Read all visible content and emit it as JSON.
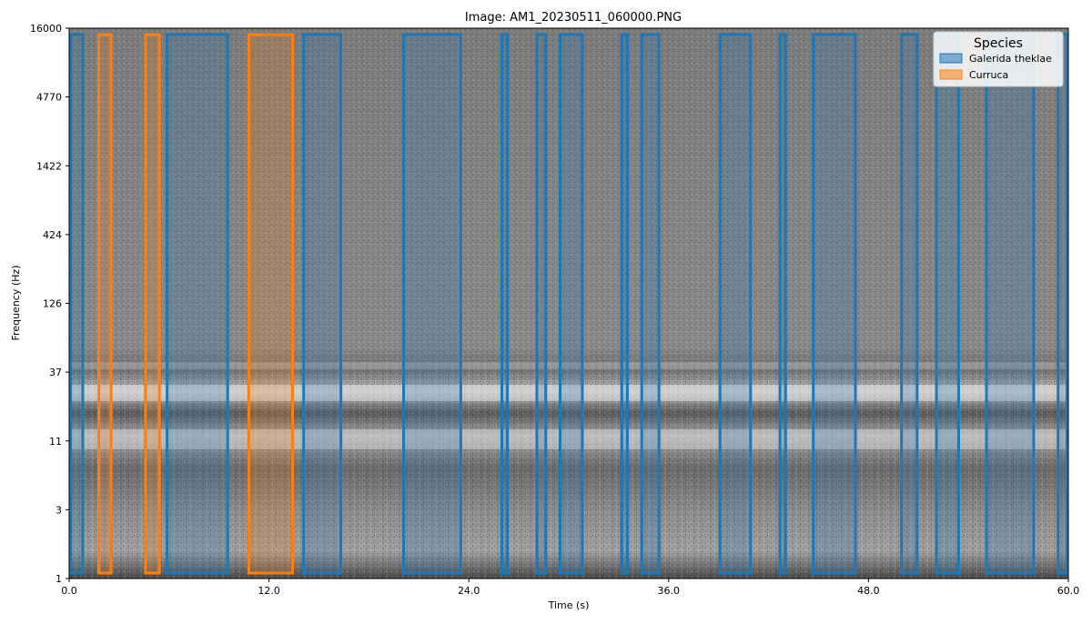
{
  "chart_data": {
    "type": "spectrogram-annotations",
    "title": "Image: AM1_20230511_060000.PNG",
    "xlabel": "Time (s)",
    "ylabel": "Frequency (Hz)",
    "xlim": [
      0,
      60
    ],
    "x_ticks": [
      "0.0",
      "12.0",
      "24.0",
      "36.0",
      "48.0",
      "60.0"
    ],
    "y_ticks": [
      "1",
      "3",
      "11",
      "37",
      "126",
      "424",
      "1422",
      "4770",
      "16000"
    ],
    "legend": {
      "title": "Species",
      "position": "top-right",
      "entries": [
        {
          "name": "Galerida theklae",
          "color": "#1f77b4"
        },
        {
          "name": "Curruca",
          "color": "#ff7f0e"
        }
      ]
    },
    "detections": [
      {
        "species": "Galerida theklae",
        "start": 0.0,
        "end": 0.9
      },
      {
        "species": "Curruca",
        "start": 1.7,
        "end": 2.6
      },
      {
        "species": "Curruca",
        "start": 4.5,
        "end": 5.5
      },
      {
        "species": "Galerida theklae",
        "start": 5.8,
        "end": 9.6
      },
      {
        "species": "Curruca",
        "start": 10.7,
        "end": 13.5
      },
      {
        "species": "Galerida theklae",
        "start": 14.0,
        "end": 16.4
      },
      {
        "species": "Galerida theklae",
        "start": 20.0,
        "end": 23.6
      },
      {
        "species": "Galerida theklae",
        "start": 25.9,
        "end": 26.4
      },
      {
        "species": "Galerida theklae",
        "start": 28.0,
        "end": 28.7
      },
      {
        "species": "Galerida theklae",
        "start": 29.4,
        "end": 30.9
      },
      {
        "species": "Galerida theklae",
        "start": 33.1,
        "end": 33.6
      },
      {
        "species": "Galerida theklae",
        "start": 34.3,
        "end": 35.5
      },
      {
        "species": "Galerida theklae",
        "start": 39.0,
        "end": 41.0
      },
      {
        "species": "Galerida theklae",
        "start": 42.6,
        "end": 43.1
      },
      {
        "species": "Galerida theklae",
        "start": 44.6,
        "end": 47.3
      },
      {
        "species": "Galerida theklae",
        "start": 49.9,
        "end": 51.0
      },
      {
        "species": "Galerida theklae",
        "start": 52.0,
        "end": 53.5
      },
      {
        "species": "Galerida theklae",
        "start": 55.0,
        "end": 58.0
      },
      {
        "species": "Galerida theklae",
        "start": 59.3,
        "end": 60.0
      }
    ]
  }
}
